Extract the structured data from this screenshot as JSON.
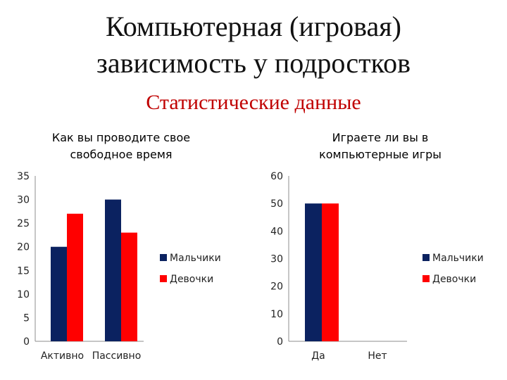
{
  "slide": {
    "title_line1": "Компьютерная (игровая)",
    "title_line2": "зависимость у подростков",
    "subtitle": "Статистические данные"
  },
  "colors": {
    "boys": "#0b2260",
    "girls": "#ff0000",
    "axis": "#8c8c8c"
  },
  "chart_data": [
    {
      "type": "bar",
      "title_lines": [
        "Как вы проводите свое",
        "свободное время"
      ],
      "categories": [
        "Активно",
        "Пассивно"
      ],
      "series": [
        {
          "name": "Мальчики",
          "values": [
            20,
            30
          ]
        },
        {
          "name": "Девочки",
          "values": [
            27,
            23
          ]
        }
      ],
      "ylim": [
        0,
        35
      ],
      "yticks": [
        0,
        5,
        10,
        15,
        20,
        25,
        30,
        35
      ],
      "grid": false,
      "legend": "right"
    },
    {
      "type": "bar",
      "title_lines": [
        "Играете ли вы в",
        "компьютерные игры"
      ],
      "categories": [
        "Да",
        "Нет"
      ],
      "series": [
        {
          "name": "Мальчики",
          "values": [
            50,
            0
          ]
        },
        {
          "name": "Девочки",
          "values": [
            50,
            0
          ]
        }
      ],
      "ylim": [
        0,
        60
      ],
      "yticks": [
        0,
        10,
        20,
        30,
        40,
        50,
        60
      ],
      "grid": false,
      "legend": "right"
    }
  ]
}
